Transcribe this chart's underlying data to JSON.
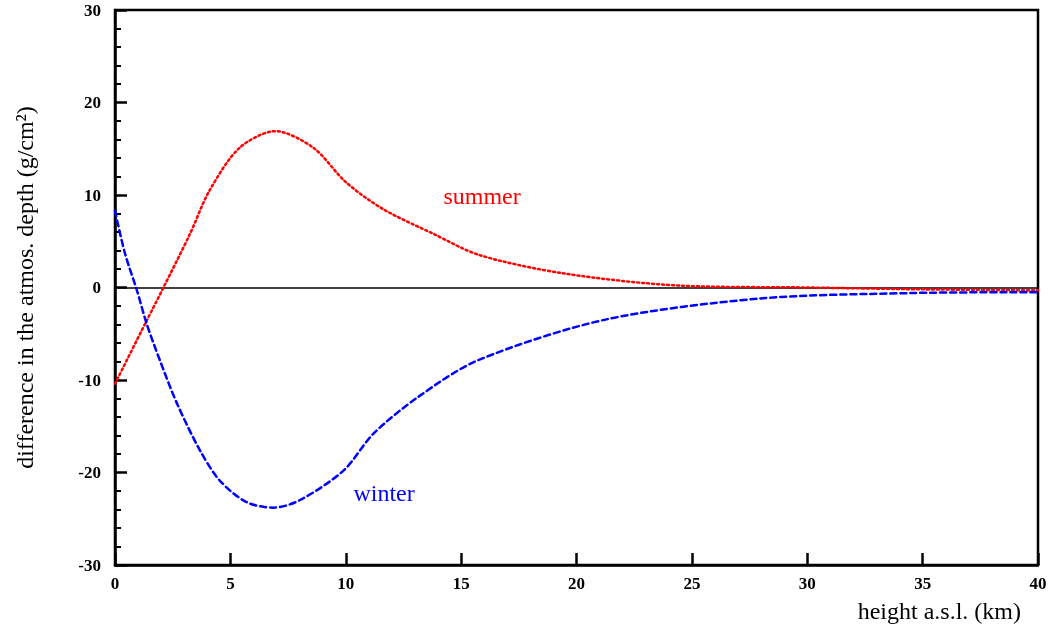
{
  "chart_data": {
    "type": "line",
    "xlabel": "height a.s.l. (km)",
    "ylabel": "difference in the atmos. depth (g/cm²)",
    "xlim": [
      0,
      40
    ],
    "xticks": [
      0,
      5,
      10,
      15,
      20,
      25,
      30,
      35,
      40
    ],
    "ylim": [
      -30,
      30
    ],
    "yticks": [
      -30,
      -20,
      -10,
      0,
      10,
      20,
      30
    ],
    "grid": false,
    "legend": false,
    "marker": "none",
    "ref_lines": [
      {
        "axis": "y",
        "value": 0,
        "color": "#000000",
        "line_style": "solid"
      }
    ],
    "series": [
      {
        "name": "summer",
        "color": "#ff0000",
        "line_style": "dotted",
        "x": [
          0,
          1.37,
          2.1,
          3.25,
          4.1,
          5.4,
          6.95,
          8.6,
          10.0,
          11.6,
          13.8,
          15.8,
          19.5,
          24.5,
          30,
          35,
          40
        ],
        "values": [
          -10.4,
          -3.6,
          0,
          5.8,
          10.5,
          15.1,
          16.9,
          15.1,
          11.4,
          8.5,
          5.8,
          3.5,
          1.5,
          0.2,
          0,
          -0.2,
          -0.3
        ]
      },
      {
        "name": "winter",
        "color": "#0000ff",
        "line_style": "dashed",
        "x": [
          0,
          0.43,
          0.95,
          1.37,
          1.95,
          2.68,
          3.68,
          4.55,
          5.7,
          6.85,
          8.0,
          9.9,
          11.2,
          13.1,
          15.7,
          21.2,
          27.9,
          34.5,
          40
        ],
        "values": [
          8.3,
          3.7,
          -0.3,
          -3.9,
          -7.9,
          -12.5,
          -17.6,
          -20.9,
          -23.2,
          -23.8,
          -23.0,
          -19.8,
          -15.8,
          -11.9,
          -7.9,
          -3.5,
          -1.2,
          -0.6,
          -0.5
        ]
      }
    ]
  }
}
